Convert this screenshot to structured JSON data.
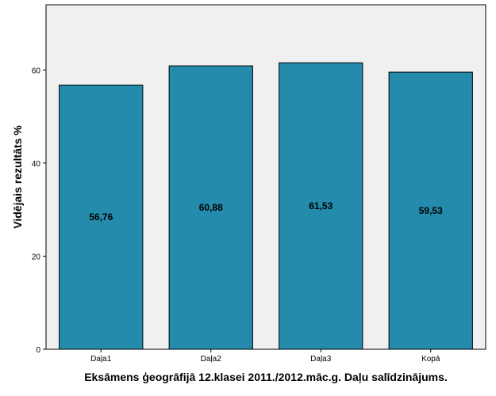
{
  "chart_data": {
    "type": "bar",
    "categories": [
      "Daļa1",
      "Daļa2",
      "Daļa3",
      "Kopā"
    ],
    "values": [
      56.76,
      60.88,
      61.53,
      59.53
    ],
    "data_labels": [
      "56,76",
      "60,88",
      "61,53",
      "59,53"
    ],
    "xlabel": "Eksāmens ģeogrāfijā 12.klasei 2011./2012.māc.g. Daļu salīdzinājums.",
    "ylabel": "Vidējais rezultāts %",
    "ylim": [
      0,
      74
    ],
    "yticks": [
      0,
      20,
      40,
      60
    ],
    "grid": false,
    "legend": "none",
    "bar_color": "#248BAC",
    "plot_background": "#F0F0F0"
  }
}
